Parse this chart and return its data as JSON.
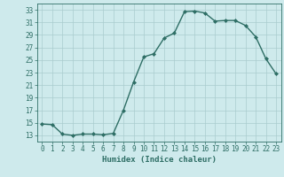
{
  "x": [
    0,
    1,
    2,
    3,
    4,
    5,
    6,
    7,
    8,
    9,
    10,
    11,
    12,
    13,
    14,
    15,
    16,
    17,
    18,
    19,
    20,
    21,
    22,
    23
  ],
  "y": [
    14.8,
    14.7,
    13.2,
    13.0,
    13.2,
    13.2,
    13.1,
    13.3,
    17.0,
    21.5,
    25.5,
    26.0,
    28.5,
    29.3,
    32.7,
    32.8,
    32.5,
    31.2,
    31.3,
    31.3,
    30.5,
    28.7,
    25.2,
    22.8
  ],
  "line_color": "#2e6e65",
  "marker": "D",
  "marker_size": 2.0,
  "linewidth": 1.0,
  "xlabel": "Humidex (Indice chaleur)",
  "xlim": [
    -0.5,
    23.5
  ],
  "ylim": [
    12,
    34
  ],
  "yticks": [
    13,
    15,
    17,
    19,
    21,
    23,
    25,
    27,
    29,
    31,
    33
  ],
  "xticks": [
    0,
    1,
    2,
    3,
    4,
    5,
    6,
    7,
    8,
    9,
    10,
    11,
    12,
    13,
    14,
    15,
    16,
    17,
    18,
    19,
    20,
    21,
    22,
    23
  ],
  "bg_color": "#ceeaec",
  "grid_color": "#aaccce",
  "text_color": "#2e6e65",
  "font_family": "monospace",
  "tick_fontsize": 5.5,
  "xlabel_fontsize": 6.5
}
